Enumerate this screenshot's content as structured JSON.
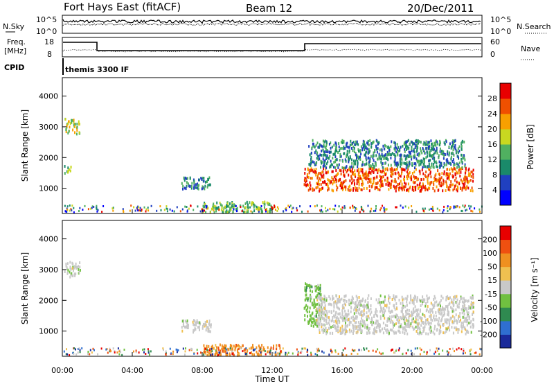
{
  "header": {
    "station": "Fort Hays East (fitACF)",
    "beam": "Beam 12",
    "date": "20/Dec/2011"
  },
  "top_panels": {
    "nsky_label": "N.Sky",
    "nsky_ticks": [
      "10^5",
      "10^0"
    ],
    "nsearch_label": "N.Search",
    "nsearch_ticks": [
      "10^5",
      "10^0"
    ],
    "freq_label": "Freq.",
    "freq_unit": "[MHz]",
    "freq_ticks": [
      "18",
      "8"
    ],
    "nave_label": "Nave",
    "nave_ticks": [
      "60",
      "0"
    ],
    "cpid_label": "CPID",
    "cpid_text": "themis 3300 IF"
  },
  "chart_data": [
    {
      "type": "heatmap",
      "name": "power",
      "ylabel": "Slant Range [km]",
      "xlabel": "",
      "y_ticks": [
        1000,
        2000,
        3000,
        4000
      ],
      "y_tick_labels": [
        "1000",
        "2000",
        "3000",
        "4000"
      ],
      "ylim": [
        180,
        4600
      ],
      "xlim_hours": [
        0,
        24
      ],
      "colorbar_label": "Power [dB]",
      "colorbar_ticks": [
        "4",
        "8",
        "12",
        "16",
        "20",
        "24",
        "28"
      ],
      "colorbar_colors": [
        "#0000ff",
        "#2040c0",
        "#1a8a6a",
        "#50b060",
        "#c8d820",
        "#f8a000",
        "#f05000",
        "#e80000"
      ],
      "echo_regions": [
        {
          "t0": 0.1,
          "t1": 1.0,
          "r0": 2800,
          "r1": 3300,
          "level": 4
        },
        {
          "t0": 0.1,
          "t1": 0.5,
          "r0": 1500,
          "r1": 1800,
          "level": 3
        },
        {
          "t0": 6.8,
          "t1": 8.5,
          "r0": 1000,
          "r1": 1400,
          "level": 2
        },
        {
          "t0": 13.8,
          "t1": 23.5,
          "r0": 950,
          "r1": 1700,
          "level": 6
        },
        {
          "t0": 14.0,
          "t1": 23.0,
          "r0": 1700,
          "r1": 2600,
          "level": 2
        },
        {
          "t0": 8.0,
          "t1": 12.0,
          "r0": 250,
          "r1": 600,
          "level": 3
        }
      ]
    },
    {
      "type": "heatmap",
      "name": "velocity",
      "ylabel": "Slant Range [km]",
      "xlabel": "Time UT",
      "x_tick_labels": [
        "00:00",
        "04:00",
        "08:00",
        "12:00",
        "16:00",
        "20:00",
        "00:00"
      ],
      "y_ticks": [
        1000,
        2000,
        3000,
        4000
      ],
      "y_tick_labels": [
        "1000",
        "2000",
        "3000",
        "4000"
      ],
      "ylim": [
        180,
        4600
      ],
      "xlim_hours": [
        0,
        24
      ],
      "colorbar_label": "Velocity [m s⁻¹]",
      "colorbar_ticks": [
        "200",
        "100",
        "50",
        "15",
        "-15",
        "-50",
        "-100",
        "-200"
      ],
      "colorbar_colors": [
        "#1a2a9a",
        "#2f6fd0",
        "#2f8a50",
        "#70c040",
        "#c8c8c8",
        "#f0c050",
        "#f09020",
        "#f05010",
        "#e80000"
      ],
      "echo_regions": [
        {
          "t0": 0.1,
          "t1": 1.0,
          "r0": 2800,
          "r1": 3300,
          "level": 4
        },
        {
          "t0": 6.8,
          "t1": 8.5,
          "r0": 1000,
          "r1": 1400,
          "level": 4
        },
        {
          "t0": 13.8,
          "t1": 14.8,
          "r0": 1200,
          "r1": 2600,
          "level": 3
        },
        {
          "t0": 14.5,
          "t1": 23.5,
          "r0": 950,
          "r1": 2200,
          "level": 4
        },
        {
          "t0": 8.0,
          "t1": 12.5,
          "r0": 250,
          "r1": 600,
          "level": 6
        }
      ]
    }
  ]
}
